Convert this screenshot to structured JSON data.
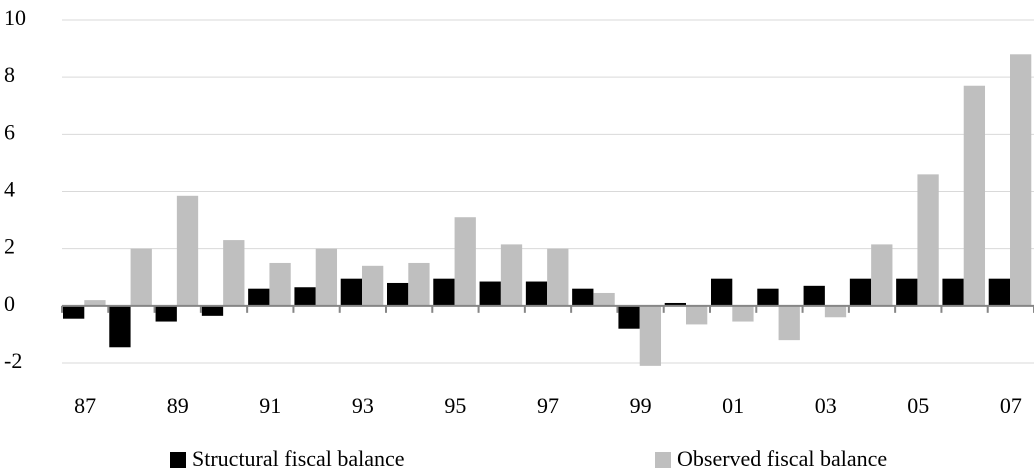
{
  "chart_data": {
    "type": "bar",
    "categories": [
      "87",
      null,
      "89",
      null,
      "91",
      null,
      "93",
      null,
      "95",
      null,
      "97",
      null,
      "99",
      null,
      "01",
      null,
      "03",
      null,
      "05",
      null,
      "07"
    ],
    "series": [
      {
        "name": "Structural fiscal balance",
        "color": "#000000",
        "values": [
          -0.45,
          -1.45,
          -0.55,
          -0.35,
          0.6,
          0.65,
          0.95,
          0.8,
          0.95,
          0.85,
          0.85,
          0.6,
          -0.8,
          0.1,
          0.95,
          0.6,
          0.7,
          0.95,
          0.95,
          0.95,
          0.95
        ]
      },
      {
        "name": "Observed fiscal balance",
        "color": "#bfbfbf",
        "values": [
          0.2,
          2.0,
          3.85,
          2.3,
          1.5,
          2.0,
          1.4,
          1.5,
          3.1,
          2.15,
          2.0,
          0.45,
          -2.1,
          -0.65,
          -0.55,
          -1.2,
          -0.4,
          2.15,
          4.6,
          7.7,
          8.8
        ]
      }
    ],
    "ylim": [
      -2,
      10
    ],
    "yticks": [
      -2,
      0,
      2,
      4,
      6,
      8,
      10
    ],
    "grid": true,
    "legend": "bottom"
  }
}
